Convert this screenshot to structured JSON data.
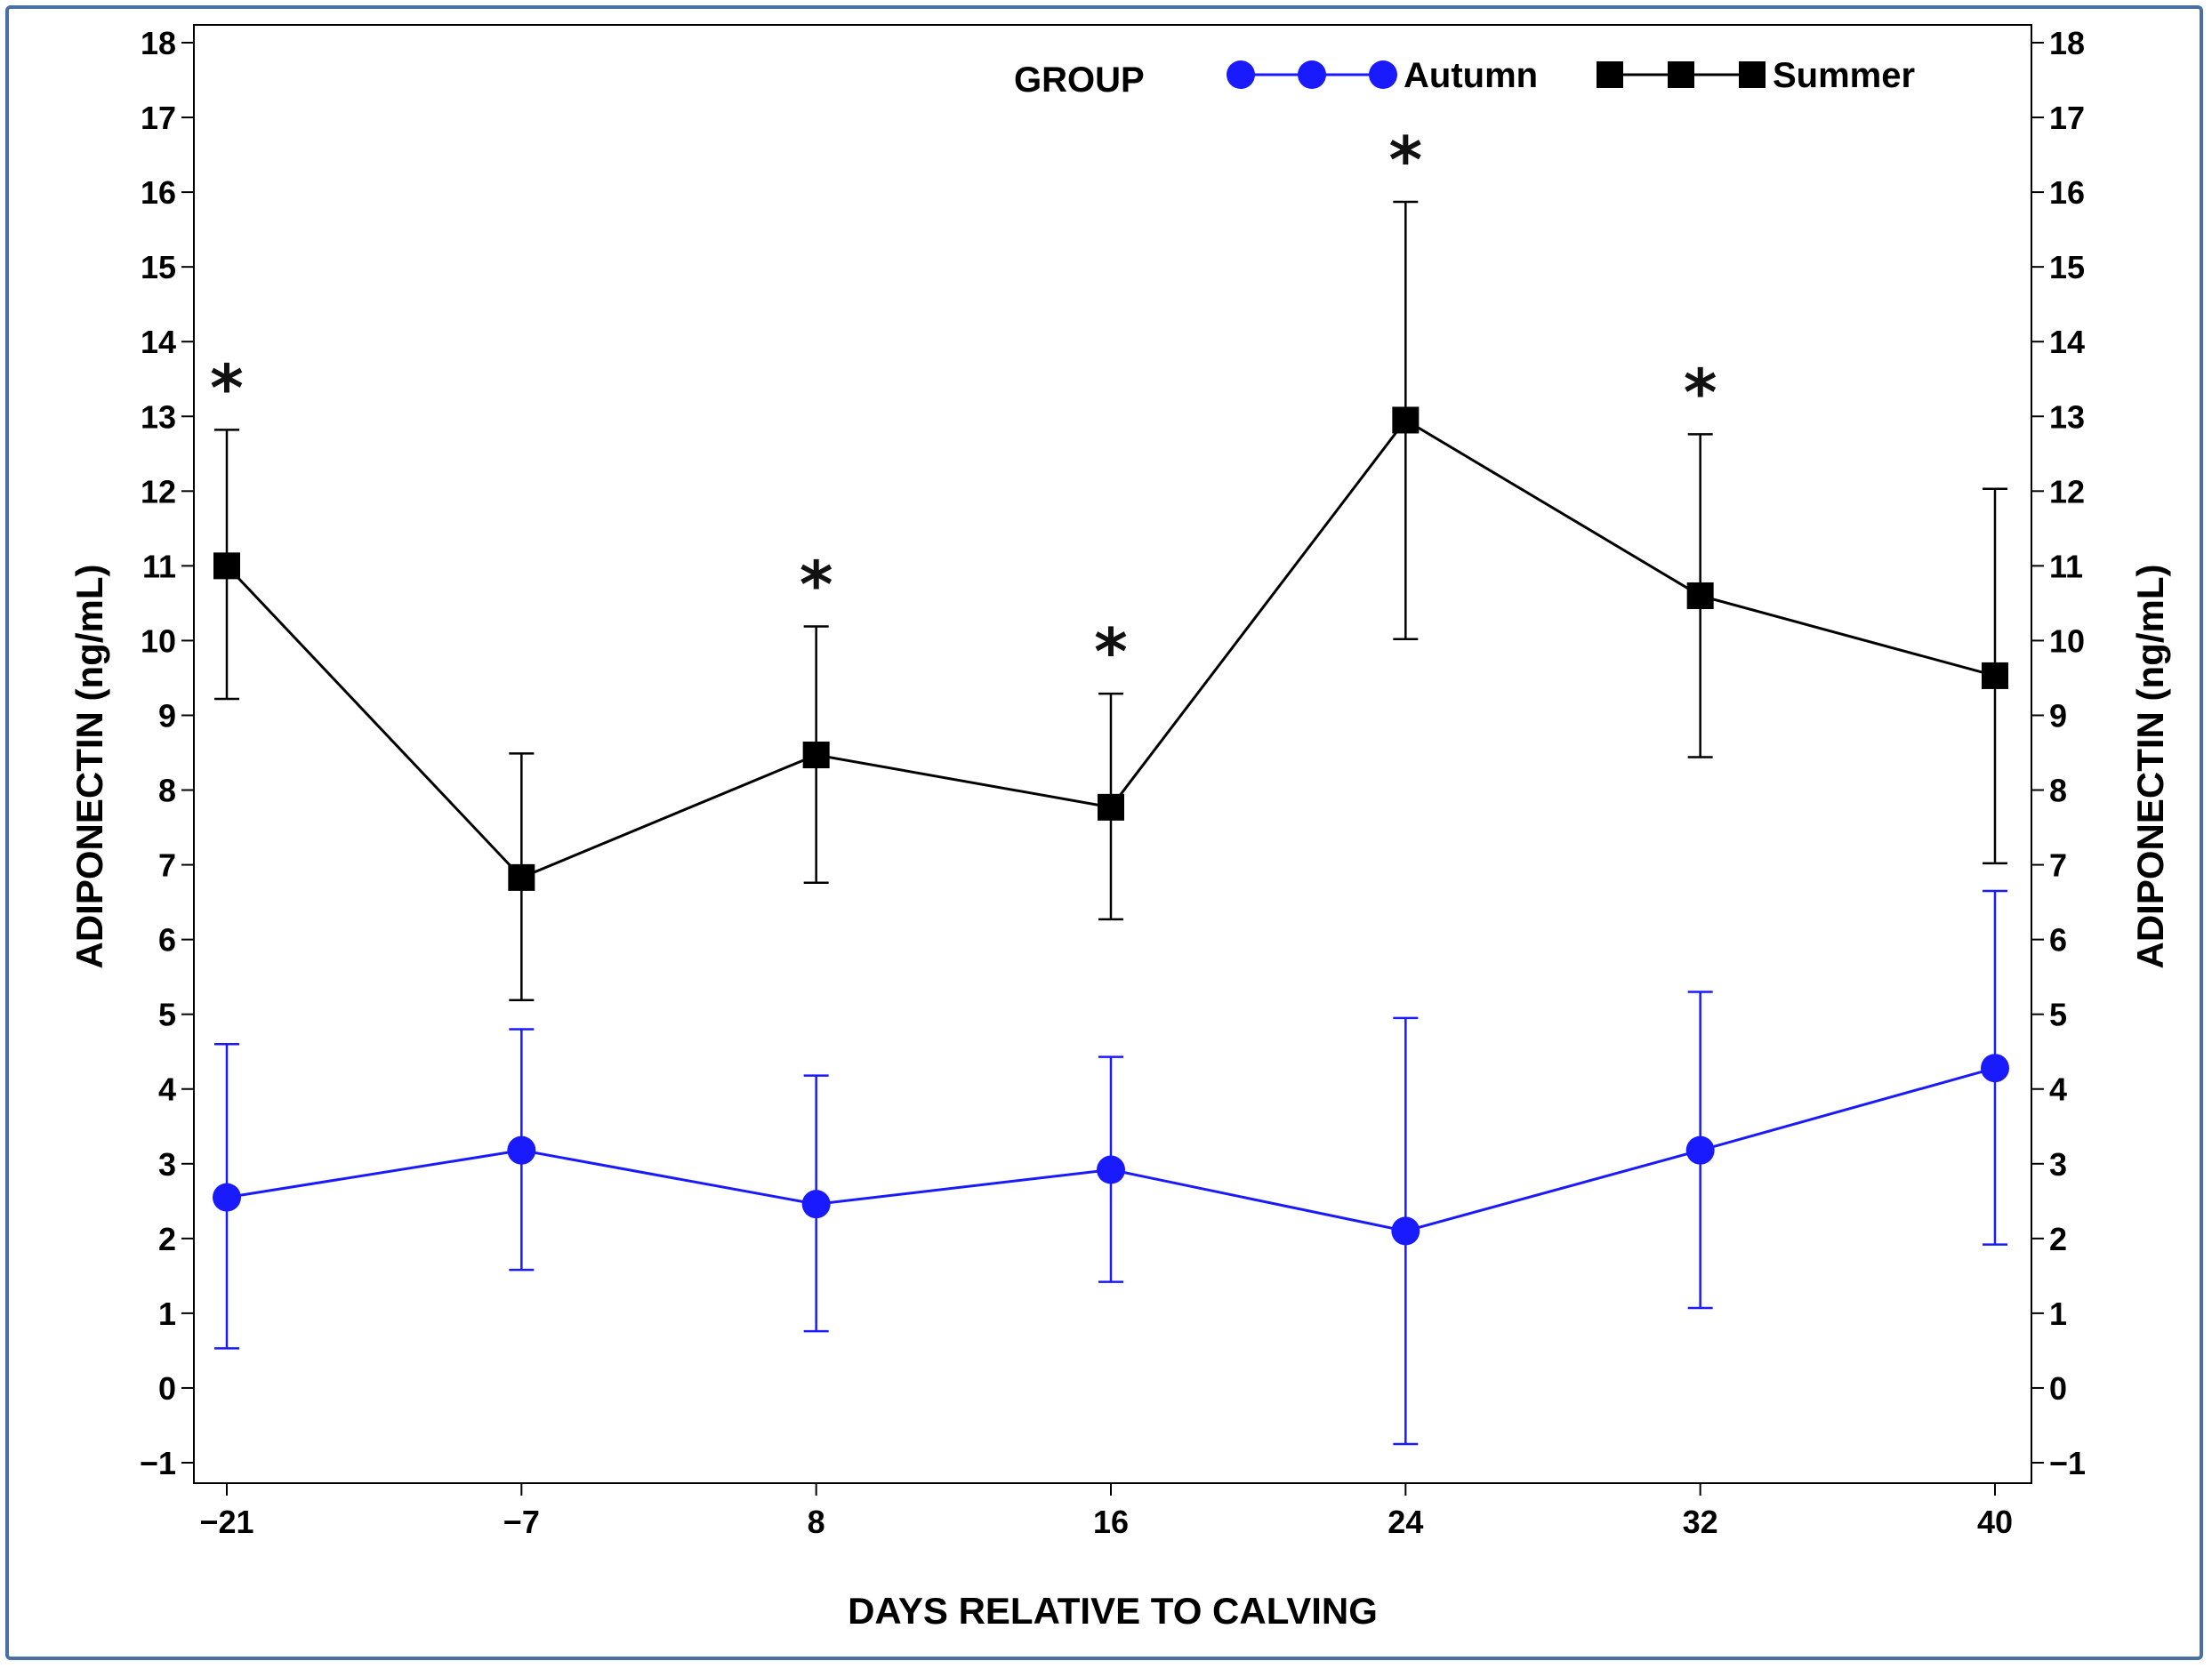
{
  "chart_data": {
    "type": "line",
    "title": "",
    "xlabel": "DAYS RELATIVE TO CALVING",
    "ylabel": "ADIPONECTIN (ng/mL)",
    "ylabel_right": "ADIPONECTIN (ng/mL)",
    "ylim": [
      -1,
      18
    ],
    "y_ticks": [
      -1,
      0,
      1,
      2,
      3,
      4,
      5,
      6,
      7,
      8,
      9,
      10,
      11,
      12,
      13,
      14,
      15,
      16,
      17,
      18
    ],
    "y_tick_labels": [
      "−1",
      "0",
      "1",
      "2",
      "3",
      "4",
      "5",
      "6",
      "7",
      "8",
      "9",
      "10",
      "11",
      "12",
      "13",
      "14",
      "15",
      "16",
      "17",
      "18"
    ],
    "categories": [
      "−21",
      "−7",
      "8",
      "16",
      "24",
      "32",
      "40"
    ],
    "legend": {
      "title": "GROUP",
      "position": "top-right"
    },
    "series": [
      {
        "name": "Autumn",
        "color": "#1a1aff",
        "marker": "circle",
        "values": [
          2.55,
          3.18,
          2.46,
          2.92,
          2.1,
          3.18,
          4.28
        ],
        "err_low": [
          0.53,
          1.58,
          0.76,
          1.42,
          -0.75,
          1.07,
          1.92
        ],
        "err_high": [
          4.6,
          4.8,
          4.18,
          4.43,
          4.95,
          5.3,
          6.65
        ]
      },
      {
        "name": "Summer",
        "color": "#000000",
        "marker": "square",
        "values": [
          11.0,
          6.83,
          8.47,
          7.77,
          12.95,
          10.6,
          9.53
        ],
        "err_low": [
          9.22,
          5.19,
          6.76,
          6.27,
          10.02,
          8.44,
          7.02
        ],
        "err_high": [
          12.82,
          8.49,
          10.19,
          9.29,
          15.87,
          12.76,
          12.03
        ]
      }
    ],
    "annotations": [
      {
        "category": "−21",
        "text": "*"
      },
      {
        "category": "8",
        "text": "*"
      },
      {
        "category": "16",
        "text": "*"
      },
      {
        "category": "24",
        "text": "*"
      },
      {
        "category": "32",
        "text": "*"
      }
    ]
  }
}
